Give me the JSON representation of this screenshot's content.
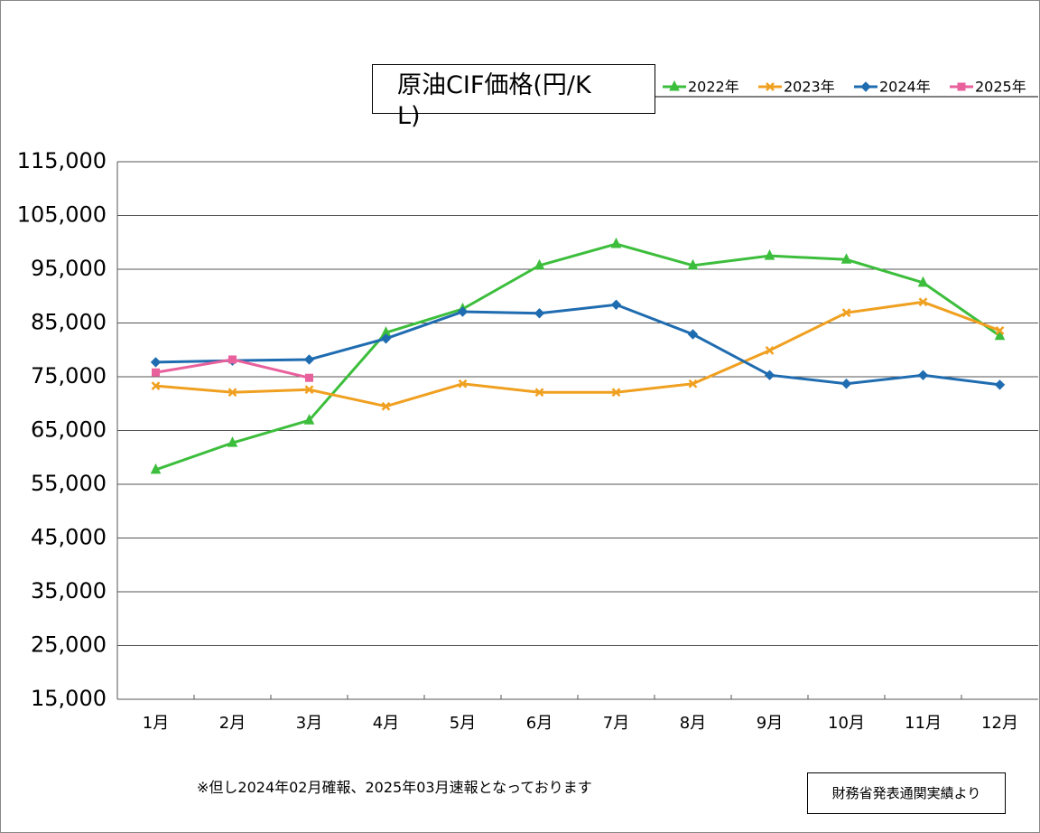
{
  "chart_data": {
    "type": "line",
    "title": "原油CIF価格(円/KL)",
    "categories": [
      "1月",
      "2月",
      "3月",
      "4月",
      "5月",
      "6月",
      "7月",
      "8月",
      "9月",
      "10月",
      "11月",
      "12月"
    ],
    "series": [
      {
        "name": "2022年",
        "color": "#3cbe3c",
        "marker": "triangle",
        "values": [
          57700,
          62700,
          66900,
          83200,
          87600,
          95700,
          99700,
          95700,
          97500,
          96800,
          92500,
          82600
        ]
      },
      {
        "name": "2023年",
        "color": "#f0a020",
        "marker": "cross",
        "values": [
          73300,
          72100,
          72600,
          69500,
          73700,
          72100,
          72100,
          73700,
          79900,
          86900,
          88900,
          83600
        ]
      },
      {
        "name": "2024年",
        "color": "#1f6cb0",
        "marker": "diamond",
        "values": [
          77700,
          78000,
          78200,
          82100,
          87100,
          86800,
          88400,
          82900,
          75300,
          73700,
          75300,
          73500
        ]
      },
      {
        "name": "2025年",
        "color": "#e8609c",
        "marker": "square",
        "values": [
          75800,
          78200,
          74800,
          null,
          null,
          null,
          null,
          null,
          null,
          null,
          null,
          null
        ]
      }
    ],
    "ylim": [
      15000,
      115000
    ],
    "yticks": [
      {
        "value": 15000,
        "label": "15,000"
      },
      {
        "value": 25000,
        "label": "25,000"
      },
      {
        "value": 35000,
        "label": "35,000"
      },
      {
        "value": 45000,
        "label": "45,000"
      },
      {
        "value": 55000,
        "label": "55,000"
      },
      {
        "value": 65000,
        "label": "65,000"
      },
      {
        "value": 75000,
        "label": "75,000"
      },
      {
        "value": 85000,
        "label": "85,000"
      },
      {
        "value": 95000,
        "label": "95,000"
      },
      {
        "value": 105000,
        "label": "105,000"
      },
      {
        "value": 115000,
        "label": "115,000"
      }
    ],
    "grid": true,
    "legend": "top-right",
    "note": "※但し2024年02月確報、2025年03月速報となっております",
    "source": "財務省発表通関実績より"
  }
}
